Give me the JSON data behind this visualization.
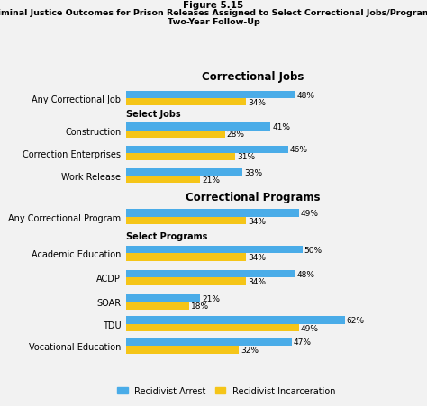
{
  "title_line1": "Figure 5.15",
  "title_line2": "Criminal Justice Outcomes for Prison Releases Assigned to Select Correctional Jobs/Programs:",
  "title_line3": "Two-Year Follow-Up",
  "section1_title": "Correctional Jobs",
  "section2_title": "Correctional Programs",
  "select_jobs_label": "Select Jobs",
  "select_programs_label": "Select Programs",
  "jobs_categories": [
    "Any Correctional Job",
    "Construction",
    "Correction Enterprises",
    "Work Release"
  ],
  "jobs_arrest": [
    48,
    41,
    46,
    33
  ],
  "jobs_incarceration": [
    34,
    28,
    31,
    21
  ],
  "programs_categories": [
    "Any Correctional Program",
    "Academic Education",
    "ACDP",
    "SOAR",
    "TDU",
    "Vocational Education"
  ],
  "programs_arrest": [
    49,
    50,
    48,
    21,
    62,
    47
  ],
  "programs_incarceration": [
    34,
    34,
    34,
    18,
    49,
    32
  ],
  "color_arrest": "#4aace8",
  "color_incarceration": "#f5c518",
  "legend_arrest": "Recidivist Arrest",
  "legend_incarceration": "Recidivist Incarceration",
  "bar_height": 0.32,
  "background_color": "#f2f2f2",
  "text_color": "#222222"
}
